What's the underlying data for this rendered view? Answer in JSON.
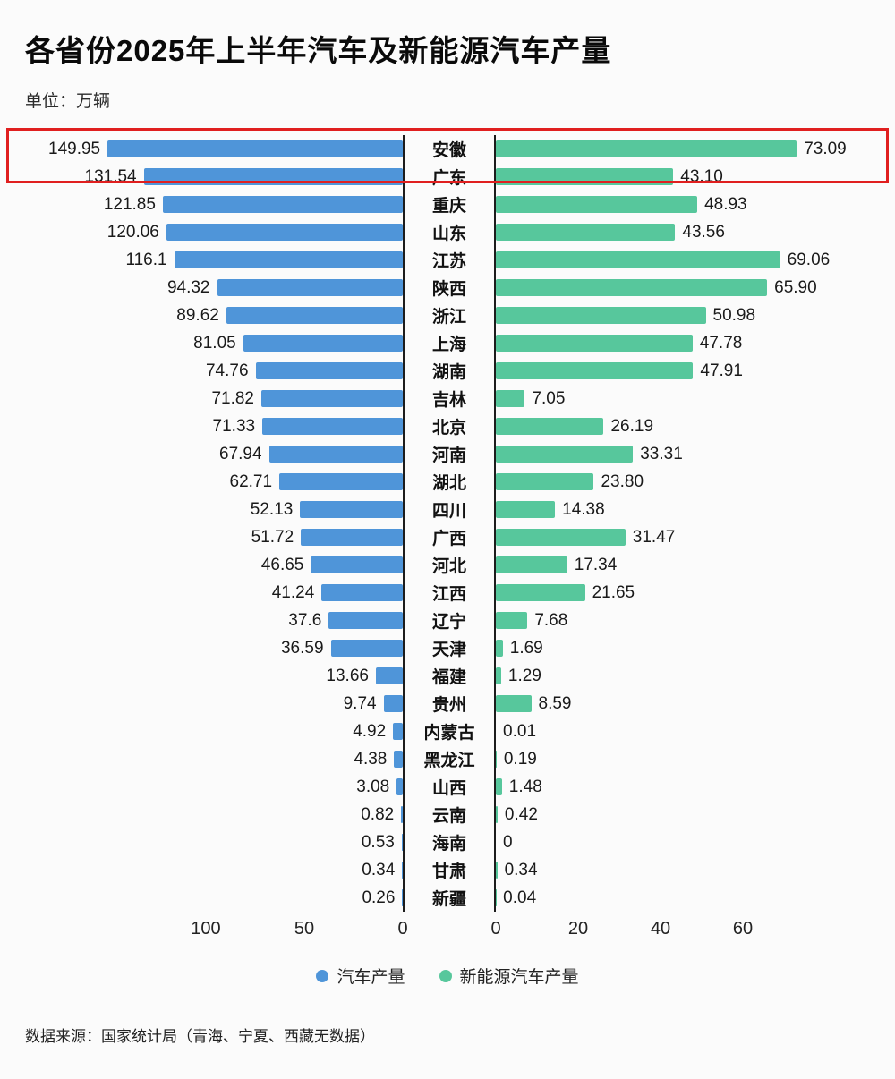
{
  "title": "各省份2025年上半年汽车及新能源汽车产量",
  "unit_label": "单位：万辆",
  "source_note": "数据来源：国家统计局（青海、宁夏、西藏无数据）",
  "legend": {
    "auto_label": "汽车产量",
    "nev_label": "新能源汽车产量"
  },
  "colors": {
    "auto": "#4f95d9",
    "nev": "#57c79c",
    "highlight": "#e01f1f",
    "axis": "#1c1c1c"
  },
  "chart_data": {
    "type": "bar",
    "orientation": "bidirectional-horizontal",
    "title": "各省份2025年上半年汽车及新能源汽车产量",
    "unit": "万辆",
    "categories": [
      "安徽",
      "广东",
      "重庆",
      "山东",
      "江苏",
      "陕西",
      "浙江",
      "上海",
      "湖南",
      "吉林",
      "北京",
      "河南",
      "湖北",
      "四川",
      "广西",
      "河北",
      "江西",
      "辽宁",
      "天津",
      "福建",
      "贵州",
      "内蒙古",
      "黑龙江",
      "山西",
      "云南",
      "海南",
      "甘肃",
      "新疆"
    ],
    "series": [
      {
        "name": "汽车产量",
        "side": "left",
        "color": "#4f95d9",
        "values": [
          149.95,
          131.54,
          121.85,
          120.06,
          116.1,
          94.32,
          89.62,
          81.05,
          74.76,
          71.82,
          71.33,
          67.94,
          62.71,
          52.13,
          51.72,
          46.65,
          41.24,
          37.6,
          36.59,
          13.66,
          9.74,
          4.92,
          4.38,
          3.08,
          0.82,
          0.53,
          0.34,
          0.26
        ],
        "labels": [
          "149.95",
          "131.54",
          "121.85",
          "120.06",
          "116.1",
          "94.32",
          "89.62",
          "81.05",
          "74.76",
          "71.82",
          "71.33",
          "67.94",
          "62.71",
          "52.13",
          "51.72",
          "46.65",
          "41.24",
          "37.6",
          "36.59",
          "13.66",
          "9.74",
          "4.92",
          "4.38",
          "3.08",
          "0.82",
          "0.53",
          "0.34",
          "0.26"
        ]
      },
      {
        "name": "新能源汽车产量",
        "side": "right",
        "color": "#57c79c",
        "values": [
          73.09,
          43.1,
          48.93,
          43.56,
          69.06,
          65.9,
          50.98,
          47.78,
          47.91,
          7.05,
          26.19,
          33.31,
          23.8,
          14.38,
          31.47,
          17.34,
          21.65,
          7.68,
          1.69,
          1.29,
          8.59,
          0.01,
          0.19,
          1.48,
          0.42,
          0,
          0.34,
          0.04
        ],
        "labels": [
          "73.09",
          "43.10",
          "48.93",
          "43.56",
          "69.06",
          "65.90",
          "50.98",
          "47.78",
          "47.91",
          "7.05",
          "26.19",
          "33.31",
          "23.80",
          "14.38",
          "31.47",
          "17.34",
          "21.65",
          "7.68",
          "1.69",
          "1.29",
          "8.59",
          "0.01",
          "0.19",
          "1.48",
          "0.42",
          "0",
          "0.34",
          "0.04"
        ]
      }
    ],
    "left_axis_ticks": [
      100,
      50,
      0
    ],
    "right_axis_ticks": [
      0,
      20,
      40,
      60
    ],
    "left_axis_max": 150,
    "right_axis_max": 75,
    "highlighted_category": "安徽",
    "grid": false,
    "legend_position": "bottom"
  }
}
